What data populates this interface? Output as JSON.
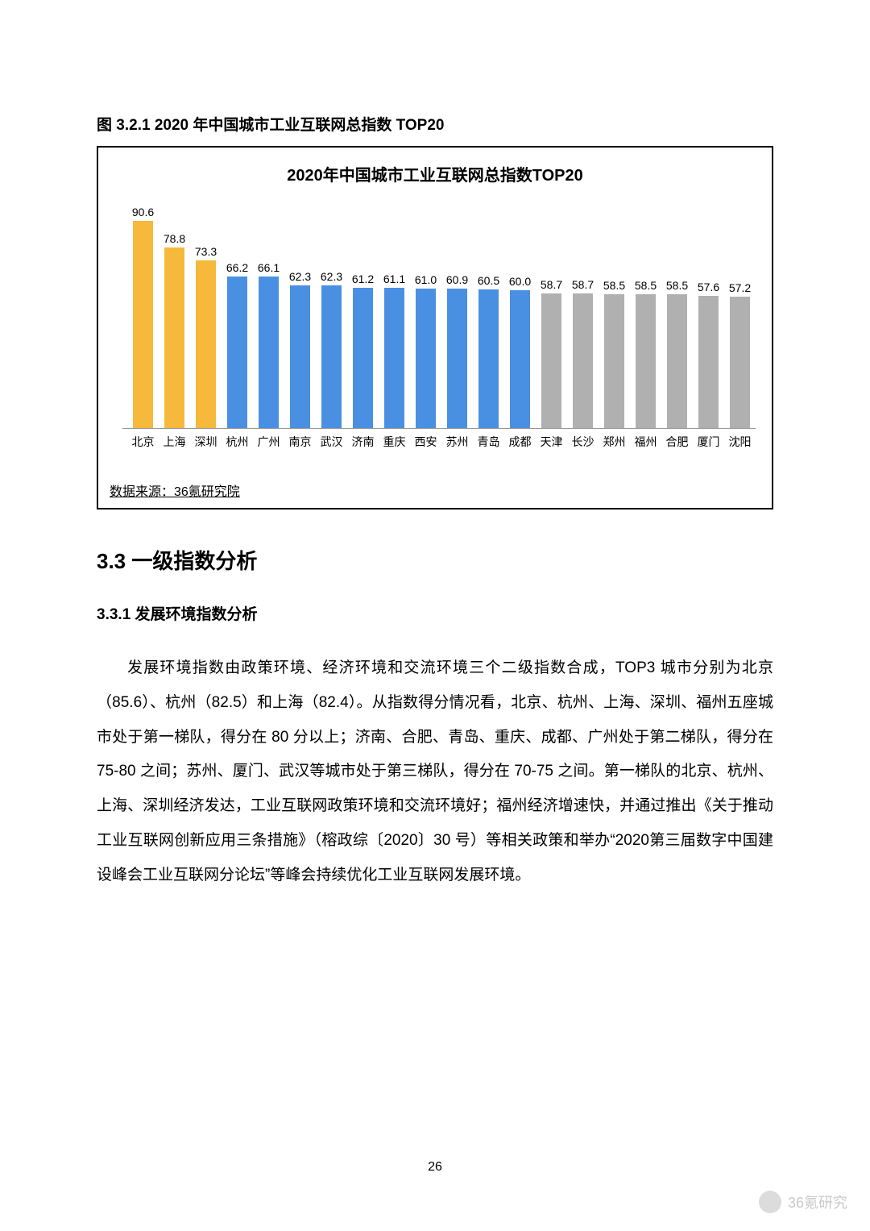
{
  "figure_caption": "图 3.2.1 2020 年中国城市工业互联网总指数 TOP20",
  "chart": {
    "type": "bar",
    "title": "2020年中国城市工业互联网总指数TOP20",
    "max_value": 95,
    "categories": [
      "北京",
      "上海",
      "深圳",
      "杭州",
      "广州",
      "南京",
      "武汉",
      "济南",
      "重庆",
      "西安",
      "苏州",
      "青岛",
      "成都",
      "天津",
      "长沙",
      "郑州",
      "福州",
      "合肥",
      "厦门",
      "沈阳"
    ],
    "values": [
      90.6,
      78.8,
      73.3,
      66.2,
      66.1,
      62.3,
      62.3,
      61.2,
      61.1,
      61.0,
      60.9,
      60.5,
      60.0,
      58.7,
      58.7,
      58.5,
      58.5,
      58.5,
      57.6,
      57.2
    ],
    "colors": [
      "#f6b93b",
      "#f6b93b",
      "#f6b93b",
      "#4a90e2",
      "#4a90e2",
      "#4a90e2",
      "#4a90e2",
      "#4a90e2",
      "#4a90e2",
      "#4a90e2",
      "#4a90e2",
      "#4a90e2",
      "#4a90e2",
      "#b0b0b0",
      "#b0b0b0",
      "#b0b0b0",
      "#b0b0b0",
      "#b0b0b0",
      "#b0b0b0",
      "#b0b0b0"
    ],
    "source": "数据来源：36氪研究院"
  },
  "section_title": "3.3 一级指数分析",
  "subsection_title": "3.3.1 发展环境指数分析",
  "body": "发展环境指数由政策环境、经济环境和交流环境三个二级指数合成，TOP3 城市分别为北京（85.6）、杭州（82.5）和上海（82.4）。从指数得分情况看，北京、杭州、上海、深圳、福州五座城市处于第一梯队，得分在 80 分以上；济南、合肥、青岛、重庆、成都、广州处于第二梯队，得分在 75-80 之间；苏州、厦门、武汉等城市处于第三梯队，得分在 70-75 之间。第一梯队的北京、杭州、上海、深圳经济发达，工业互联网政策环境和交流环境好；福州经济增速快，并通过推出《关于推动工业互联网创新应用三条措施》（榕政综〔2020〕30 号）等相关政策和举办“2020第三届数字中国建设峰会工业互联网分论坛”等峰会持续优化工业互联网发展环境。",
  "page_number": "26",
  "watermark": "36氪研究"
}
